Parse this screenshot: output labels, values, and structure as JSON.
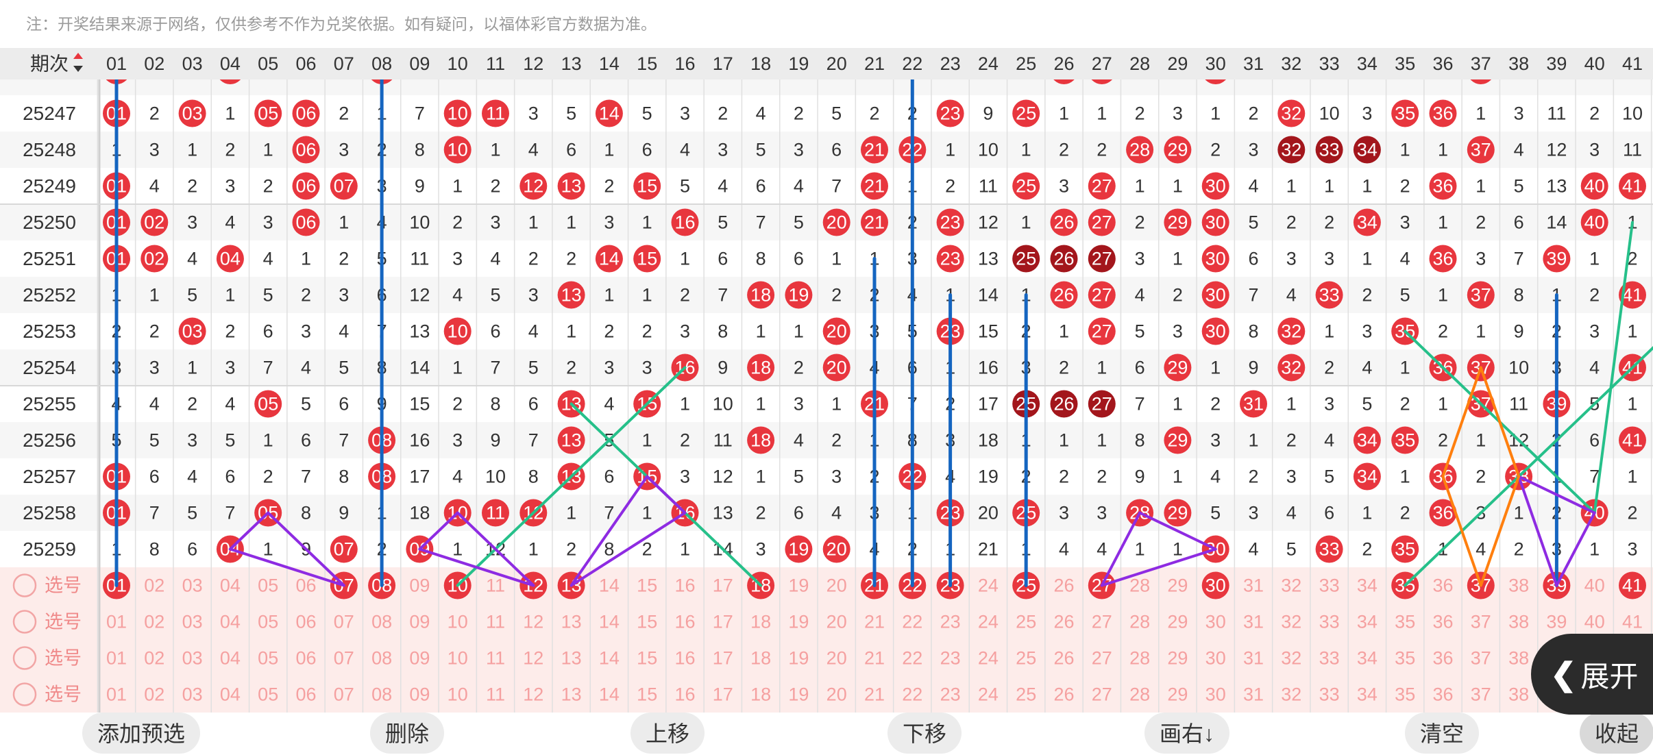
{
  "note": "注：开奖结果来源于网络，仅供参考不作为兑奖依据。如有疑问，以福体彩官方数据为准。",
  "header": {
    "period_label": "期次",
    "numbers": [
      "01",
      "02",
      "03",
      "04",
      "05",
      "06",
      "07",
      "08",
      "09",
      "10",
      "11",
      "12",
      "13",
      "14",
      "15",
      "16",
      "17",
      "18",
      "19",
      "20",
      "21",
      "22",
      "23",
      "24",
      "25",
      "26",
      "27",
      "28",
      "29",
      "30",
      "31",
      "32",
      "33",
      "34",
      "35",
      "36",
      "37",
      "38",
      "39",
      "40",
      "41"
    ]
  },
  "colors": {
    "ball_red": "#e8363e",
    "ball_dark": "#a3161c",
    "line_blue": "#1565c0",
    "line_green": "#26c08a",
    "line_purple": "#8e2be2",
    "line_orange": "#ff7f0e",
    "select_bg": "#fdecea",
    "select_text": "#f5a0a0"
  },
  "rows": [
    {
      "period": "25247",
      "cells": [
        "01",
        "2",
        "03",
        "1",
        "05",
        "06",
        "2",
        "1",
        "7",
        "10",
        "11",
        "3",
        "5",
        "14",
        "5",
        "3",
        "2",
        "4",
        "2",
        "5",
        "2",
        "2",
        "23",
        "9",
        "25",
        "1",
        "1",
        "2",
        "3",
        "1",
        "2",
        "32",
        "10",
        "3",
        "35",
        "36",
        "1",
        "3",
        "11",
        "2",
        "10"
      ]
    },
    {
      "period": "25248",
      "cells": [
        "1",
        "3",
        "1",
        "2",
        "1",
        "06",
        "3",
        "2",
        "8",
        "10",
        "1",
        "4",
        "6",
        "1",
        "6",
        "4",
        "3",
        "5",
        "3",
        "6",
        "21",
        "22",
        "1",
        "10",
        "1",
        "2",
        "2",
        "28",
        "29",
        "2",
        "3",
        "32",
        "33",
        "34",
        "1",
        "1",
        "37",
        "4",
        "12",
        "3",
        "11"
      ]
    },
    {
      "period": "25249",
      "cells": [
        "01",
        "4",
        "2",
        "3",
        "2",
        "06",
        "07",
        "3",
        "9",
        "1",
        "2",
        "12",
        "13",
        "2",
        "15",
        "5",
        "4",
        "6",
        "4",
        "7",
        "21",
        "1",
        "2",
        "11",
        "25",
        "3",
        "27",
        "1",
        "1",
        "30",
        "4",
        "1",
        "1",
        "1",
        "2",
        "36",
        "1",
        "5",
        "13",
        "40",
        "41"
      ]
    },
    {
      "period": "25250",
      "cells": [
        "01",
        "02",
        "3",
        "4",
        "3",
        "06",
        "1",
        "4",
        "10",
        "2",
        "3",
        "1",
        "1",
        "3",
        "1",
        "16",
        "5",
        "7",
        "5",
        "20",
        "21",
        "2",
        "23",
        "12",
        "1",
        "26",
        "27",
        "2",
        "29",
        "30",
        "5",
        "2",
        "2",
        "34",
        "3",
        "1",
        "2",
        "6",
        "14",
        "40",
        "1"
      ]
    },
    {
      "period": "25251",
      "cells": [
        "01",
        "02",
        "4",
        "04",
        "4",
        "1",
        "2",
        "5",
        "11",
        "3",
        "4",
        "2",
        "2",
        "14",
        "15",
        "1",
        "6",
        "8",
        "6",
        "1",
        "1",
        "3",
        "23",
        "13",
        "25",
        "26",
        "27",
        "3",
        "1",
        "30",
        "6",
        "3",
        "3",
        "1",
        "4",
        "36",
        "3",
        "7",
        "39",
        "1",
        "2"
      ]
    },
    {
      "period": "25252",
      "cells": [
        "1",
        "1",
        "5",
        "1",
        "5",
        "2",
        "3",
        "6",
        "12",
        "4",
        "5",
        "3",
        "13",
        "1",
        "1",
        "2",
        "7",
        "18",
        "19",
        "2",
        "2",
        "4",
        "1",
        "14",
        "1",
        "26",
        "27",
        "4",
        "2",
        "30",
        "7",
        "4",
        "33",
        "2",
        "5",
        "1",
        "37",
        "8",
        "1",
        "2",
        "41"
      ]
    },
    {
      "period": "25253",
      "cells": [
        "2",
        "2",
        "03",
        "2",
        "6",
        "3",
        "4",
        "7",
        "13",
        "10",
        "6",
        "4",
        "1",
        "2",
        "2",
        "3",
        "8",
        "1",
        "1",
        "20",
        "3",
        "5",
        "23",
        "15",
        "2",
        "1",
        "27",
        "5",
        "3",
        "30",
        "8",
        "32",
        "1",
        "3",
        "35",
        "2",
        "1",
        "9",
        "2",
        "3",
        "1"
      ]
    },
    {
      "period": "25254",
      "cells": [
        "3",
        "3",
        "1",
        "3",
        "7",
        "4",
        "5",
        "8",
        "14",
        "1",
        "7",
        "5",
        "2",
        "3",
        "3",
        "16",
        "9",
        "18",
        "2",
        "20",
        "4",
        "6",
        "1",
        "16",
        "3",
        "2",
        "1",
        "6",
        "29",
        "1",
        "9",
        "32",
        "2",
        "4",
        "1",
        "36",
        "37",
        "10",
        "3",
        "4",
        "41"
      ]
    },
    {
      "period": "25255",
      "cells": [
        "4",
        "4",
        "2",
        "4",
        "05",
        "5",
        "6",
        "9",
        "15",
        "2",
        "8",
        "6",
        "13",
        "4",
        "15",
        "1",
        "10",
        "1",
        "3",
        "1",
        "21",
        "7",
        "2",
        "17",
        "25",
        "26",
        "27",
        "7",
        "1",
        "2",
        "31",
        "1",
        "3",
        "5",
        "2",
        "1",
        "37",
        "11",
        "39",
        "5",
        "1"
      ]
    },
    {
      "period": "25256",
      "cells": [
        "5",
        "5",
        "3",
        "5",
        "1",
        "6",
        "7",
        "08",
        "16",
        "3",
        "9",
        "7",
        "13",
        "5",
        "1",
        "2",
        "11",
        "18",
        "4",
        "2",
        "1",
        "8",
        "3",
        "18",
        "1",
        "1",
        "1",
        "8",
        "29",
        "3",
        "1",
        "2",
        "4",
        "34",
        "35",
        "2",
        "1",
        "12",
        "2",
        "6",
        "41"
      ]
    },
    {
      "period": "25257",
      "cells": [
        "01",
        "6",
        "4",
        "6",
        "2",
        "7",
        "8",
        "08",
        "17",
        "4",
        "10",
        "8",
        "13",
        "6",
        "15",
        "3",
        "12",
        "1",
        "5",
        "3",
        "2",
        "22",
        "4",
        "19",
        "2",
        "2",
        "2",
        "9",
        "1",
        "4",
        "2",
        "3",
        "5",
        "34",
        "1",
        "36",
        "2",
        "38",
        "1",
        "7",
        "1"
      ]
    },
    {
      "period": "25258",
      "cells": [
        "01",
        "7",
        "5",
        "7",
        "05",
        "8",
        "9",
        "1",
        "18",
        "10",
        "11",
        "12",
        "1",
        "7",
        "1",
        "16",
        "13",
        "2",
        "6",
        "4",
        "3",
        "1",
        "23",
        "20",
        "25",
        "3",
        "3",
        "28",
        "29",
        "5",
        "3",
        "4",
        "6",
        "1",
        "2",
        "36",
        "3",
        "1",
        "2",
        "40",
        "2"
      ]
    },
    {
      "period": "25259",
      "cells": [
        "1",
        "8",
        "6",
        "04",
        "1",
        "9",
        "07",
        "2",
        "09",
        "1",
        "12",
        "1",
        "2",
        "8",
        "2",
        "1",
        "14",
        "3",
        "19",
        "20",
        "4",
        "2",
        "1",
        "21",
        "1",
        "4",
        "4",
        "1",
        "1",
        "30",
        "4",
        "5",
        "33",
        "2",
        "35",
        "1",
        "4",
        "2",
        "3",
        "1",
        "3"
      ]
    }
  ],
  "dark_balls": [
    {
      "period": "25248",
      "numbers": [
        "32",
        "33",
        "34"
      ]
    },
    {
      "period": "25251",
      "numbers": [
        "25",
        "26",
        "27"
      ]
    },
    {
      "period": "25255",
      "numbers": [
        "25",
        "26",
        "27"
      ]
    }
  ],
  "selected_numbers": [
    "01",
    "07",
    "08",
    "10",
    "12",
    "13",
    "18",
    "21",
    "22",
    "23",
    "25",
    "27",
    "30",
    "35",
    "37",
    "39",
    "41"
  ],
  "select_label": "选号",
  "toolbar": {
    "add_preset": "添加预选",
    "delete": "删除",
    "move_up": "上移",
    "move_down": "下移",
    "shift_right": "画右↓",
    "clear": "清空",
    "collapse": "收起"
  },
  "expand_label": "展开"
}
